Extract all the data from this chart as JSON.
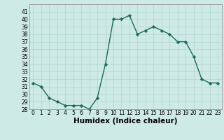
{
  "x": [
    0,
    1,
    2,
    3,
    4,
    5,
    6,
    7,
    8,
    9,
    10,
    11,
    12,
    13,
    14,
    15,
    16,
    17,
    18,
    19,
    20,
    21,
    22,
    23
  ],
  "y": [
    31.5,
    31.0,
    29.5,
    29.0,
    28.5,
    28.5,
    28.5,
    28.0,
    29.5,
    34.0,
    40.0,
    40.0,
    40.5,
    38.0,
    38.5,
    39.0,
    38.5,
    38.0,
    37.0,
    37.0,
    35.0,
    32.0,
    31.5,
    31.5
  ],
  "line_color": "#1a6b5a",
  "marker": "D",
  "marker_size": 2.2,
  "line_width": 1.0,
  "bg_color": "#ceeae7",
  "grid_color": "#afd4d0",
  "xlabel": "Humidex (Indice chaleur)",
  "ylim": [
    28,
    42
  ],
  "xlim": [
    -0.5,
    23.5
  ],
  "yticks": [
    28,
    29,
    30,
    31,
    32,
    33,
    34,
    35,
    36,
    37,
    38,
    39,
    40,
    41
  ],
  "xticks": [
    0,
    1,
    2,
    3,
    4,
    5,
    6,
    7,
    8,
    9,
    10,
    11,
    12,
    13,
    14,
    15,
    16,
    17,
    18,
    19,
    20,
    21,
    22,
    23
  ],
  "tick_fontsize": 5.5,
  "label_fontsize": 7.5,
  "label_fontweight": "bold"
}
